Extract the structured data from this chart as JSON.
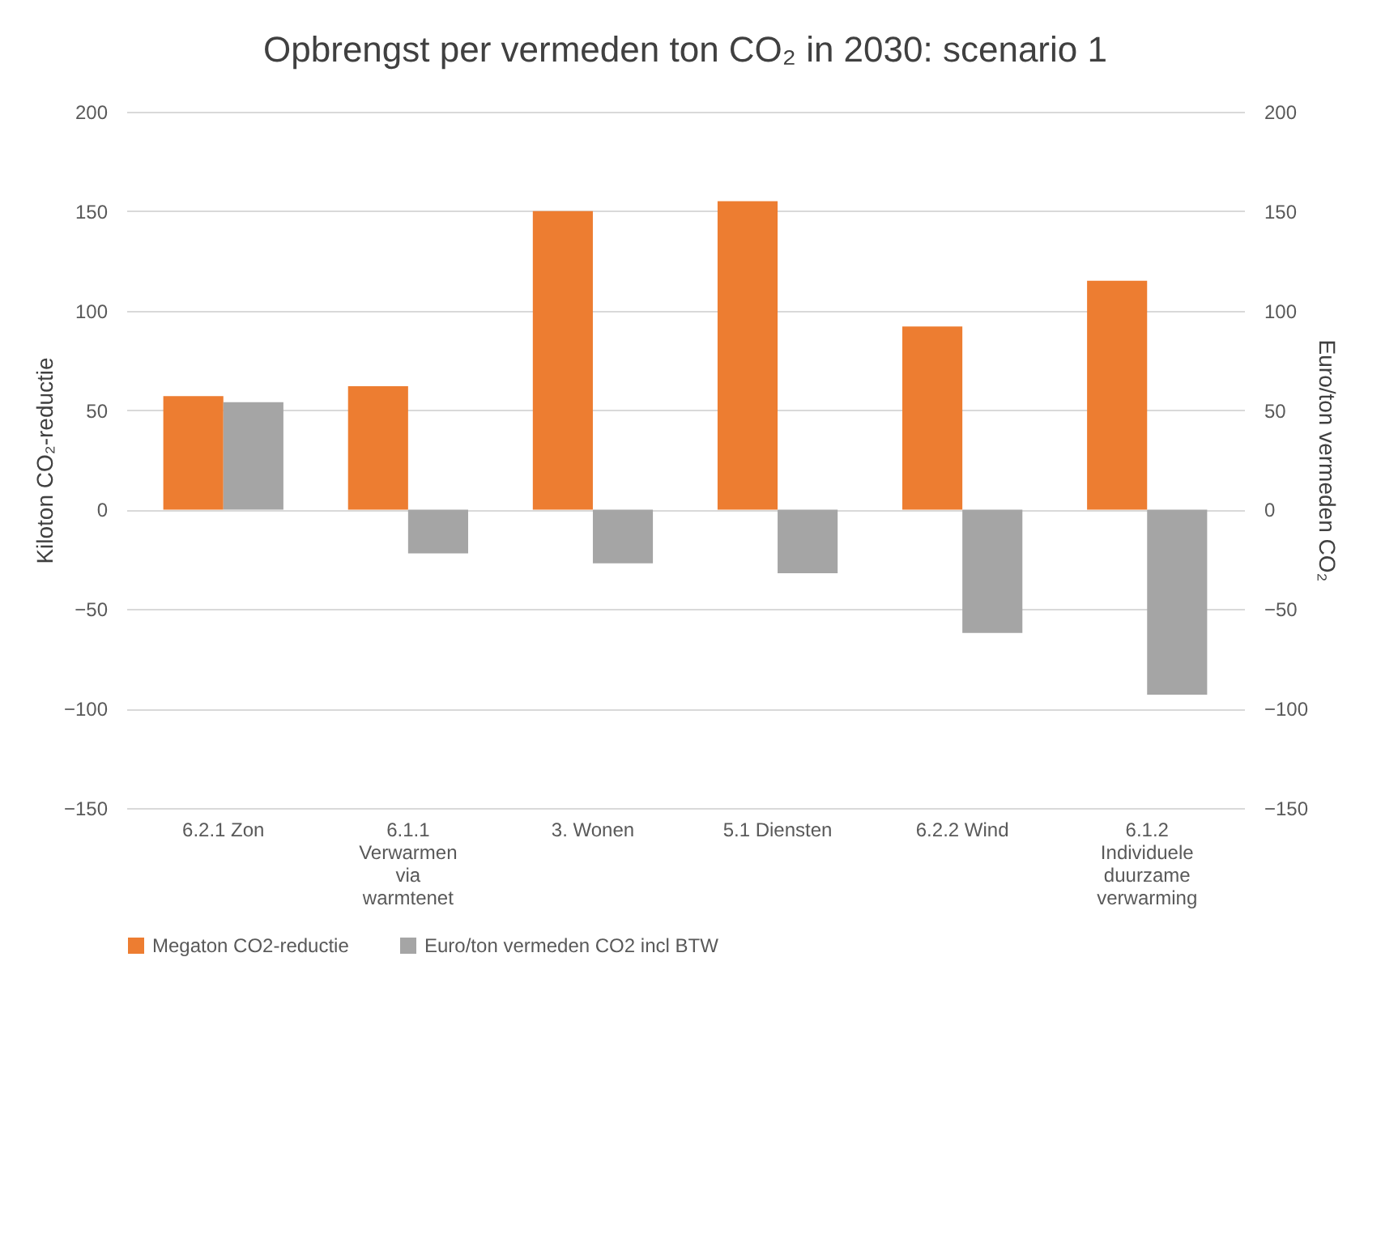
{
  "chart_data": {
    "type": "bar",
    "title": "Opbrengst per vermeden ton CO₂ in 2030: scenario 1",
    "categories": [
      "6.2.1 Zon",
      "6.1.1 Verwarmen via warmtenet",
      "3. Wonen",
      "5.1 Diensten",
      "6.2.2 Wind",
      "6.1.2 Individuele duurzame verwarming"
    ],
    "series": [
      {
        "name": "Megaton CO2-reductie",
        "color": "#ed7d31",
        "values": [
          57,
          62,
          150,
          155,
          92,
          115
        ]
      },
      {
        "name": "Euro/ton vermeden CO2 incl BTW",
        "color": "#a5a5a5",
        "axis": "y2",
        "values": [
          54,
          -22,
          -27,
          -32,
          -62,
          -93
        ]
      }
    ],
    "ylabel": "Kiloton CO₂-reductie",
    "y2label": "Euro/ton vermeden CO₂",
    "ylim": [
      -150,
      200
    ],
    "yticks": [
      -150,
      -100,
      -50,
      0,
      50,
      100,
      150,
      200
    ],
    "y2lim": [
      -150,
      200
    ],
    "y2ticks": [
      -150,
      -100,
      -50,
      0,
      50,
      100,
      150,
      200
    ],
    "grid": "y",
    "legend": "bottom"
  }
}
